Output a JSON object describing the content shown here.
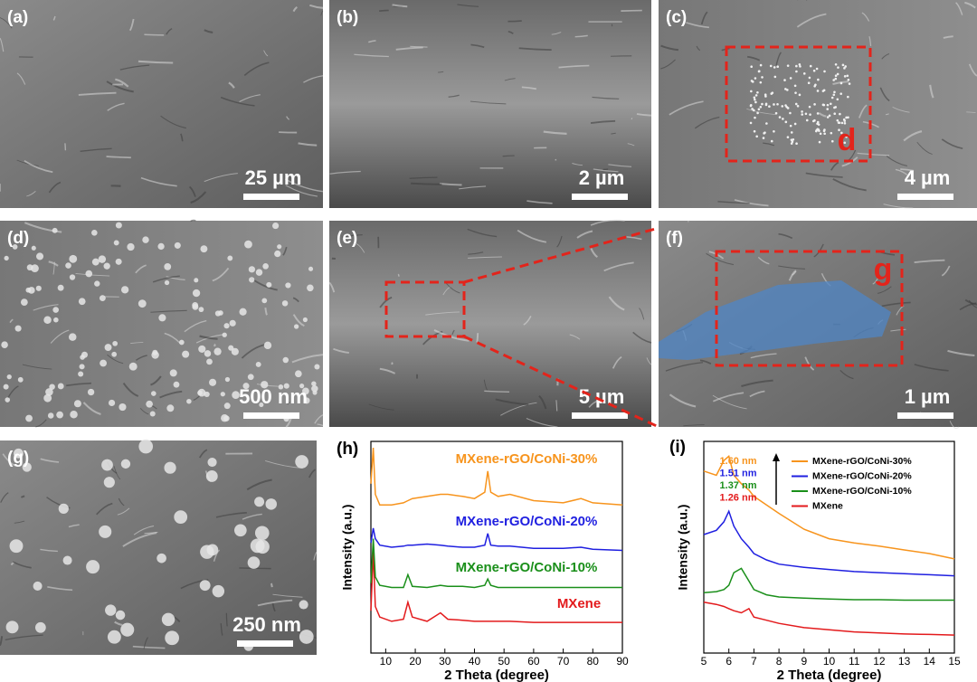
{
  "panels": [
    {
      "label": "(a)",
      "scale_bar": "25 µm"
    },
    {
      "label": "(b)",
      "scale_bar": "2 µm"
    },
    {
      "label": "(c)",
      "scale_bar": "4 µm",
      "inset_label": "d"
    },
    {
      "label": "(d)",
      "scale_bar": "500 nm"
    },
    {
      "label": "(e)",
      "scale_bar": "5 µm"
    },
    {
      "label": "(f)",
      "scale_bar": "1 µm",
      "inset_label": "g"
    },
    {
      "label": "(g)",
      "scale_bar": "250 nm"
    }
  ],
  "chart_data": [
    {
      "type": "line",
      "panel_label": "(h)",
      "xlabel": "2 Theta (degree)",
      "ylabel": "Intensity (a.u.)",
      "legend": "inline",
      "x": [
        5,
        5.8,
        6.5,
        8,
        12,
        16,
        17.5,
        19,
        24,
        28.5,
        31,
        36,
        40,
        43.5,
        44.5,
        45.5,
        48,
        52,
        60,
        70,
        76,
        80,
        90
      ],
      "xlim": [
        5,
        90
      ],
      "xticks": [
        10,
        20,
        30,
        40,
        50,
        60,
        70,
        80,
        90
      ],
      "ylim": [
        0,
        100
      ],
      "series": [
        {
          "name": "MXene",
          "color": "#e31a1c",
          "values": [
            20,
            48,
            22,
            17,
            15,
            16,
            24,
            17,
            15,
            19,
            16,
            15.5,
            15,
            15,
            15,
            15,
            15,
            15,
            14.5,
            14.5,
            14.5,
            14.5,
            14.5
          ]
        },
        {
          "name": "MXene-rGO/CoNi-10%",
          "color": "#1a8f1a",
          "values": [
            33,
            54,
            36,
            32,
            31,
            31,
            37,
            31.5,
            31,
            32,
            31.5,
            31.5,
            31,
            32,
            35,
            32,
            31,
            31,
            31,
            31,
            31,
            31,
            31
          ]
        },
        {
          "name": "MXene-rGO/CoNi-20%",
          "color": "#1f1fe0",
          "values": [
            52,
            59,
            54,
            51,
            50,
            50.5,
            51,
            51,
            51.5,
            51,
            50.5,
            50,
            50,
            51,
            56.5,
            51,
            50.5,
            50.5,
            49.5,
            49.5,
            50,
            49,
            48.5
          ]
        },
        {
          "name": "MXene-rGO/CoNi-30%",
          "color": "#f7941d",
          "values": [
            80,
            97,
            75,
            70,
            70,
            71,
            72,
            73,
            74,
            75,
            75,
            74,
            73,
            76,
            86,
            76,
            74,
            75,
            72,
            71,
            73,
            71,
            70
          ]
        }
      ]
    },
    {
      "type": "line",
      "panel_label": "(i)",
      "xlabel": "2 Theta (degree)",
      "ylabel": "Intensity (a.u.)",
      "legend": "upper right",
      "x": [
        5,
        5.5,
        5.8,
        6.0,
        6.2,
        6.5,
        6.8,
        7,
        7.5,
        8,
        9,
        10,
        11,
        12,
        13,
        14,
        15
      ],
      "xlim": [
        5,
        15
      ],
      "xticks": [
        5,
        6,
        7,
        8,
        9,
        10,
        11,
        12,
        13,
        14,
        15
      ],
      "ylim": [
        0,
        100
      ],
      "series": [
        {
          "name": "MXene-rGO/CoNi-30%",
          "color": "#f7941d",
          "values": [
            86,
            84,
            91,
            93,
            84,
            80,
            77,
            74,
            70,
            66,
            58.5,
            54,
            52,
            50.5,
            48.7,
            47,
            44.5
          ]
        },
        {
          "name": "MXene-rGO/CoNi-20%",
          "color": "#1f1fe0",
          "values": [
            56,
            58,
            62,
            67,
            60,
            54,
            50,
            47,
            44,
            42,
            40.5,
            39.5,
            38.5,
            38,
            37.5,
            37,
            36.5
          ]
        },
        {
          "name": "MXene-rGO/CoNi-10%",
          "color": "#1a8f1a",
          "values": [
            28.5,
            29,
            30,
            32,
            38,
            40,
            34,
            30,
            27.5,
            26.5,
            26,
            25.5,
            25.2,
            25.2,
            25,
            25,
            25
          ]
        },
        {
          "name": "MXene",
          "color": "#e31a1c",
          "values": [
            24,
            23,
            22,
            21,
            20,
            19,
            21,
            17,
            15.5,
            14,
            12,
            11,
            10,
            9.5,
            9,
            8.8,
            8.5
          ]
        }
      ],
      "annotations": [
        {
          "text": "1.60 nm",
          "color": "#f7941d"
        },
        {
          "text": "1.51 nm",
          "color": "#1f1fe0"
        },
        {
          "text": "1.37 nm",
          "color": "#1a8f1a"
        },
        {
          "text": "1.26 nm",
          "color": "#e31a1c"
        }
      ]
    }
  ]
}
